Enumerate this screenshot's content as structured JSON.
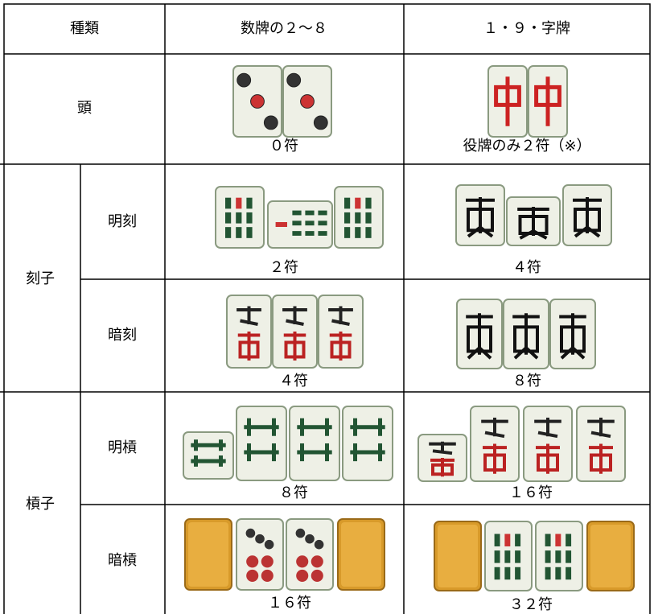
{
  "table": {
    "header": [
      "種類",
      "数牌の２～８",
      "１・９・字牌"
    ],
    "head_row": {
      "label": "頭",
      "cells": [
        "０符",
        "役牌のみ２符（※）"
      ]
    },
    "groups": [
      {
        "label": "刻子",
        "rows": [
          {
            "label": "明刻",
            "cells": [
              "２符",
              "４符"
            ]
          },
          {
            "label": "暗刻",
            "cells": [
              "４符",
              "８符"
            ]
          }
        ]
      },
      {
        "label": "槓子",
        "rows": [
          {
            "label": "明槓",
            "cells": [
              "８符",
              "１６符"
            ]
          },
          {
            "label": "暗槓",
            "cells": [
              "１６符",
              "３２符"
            ]
          }
        ]
      }
    ]
  }
}
